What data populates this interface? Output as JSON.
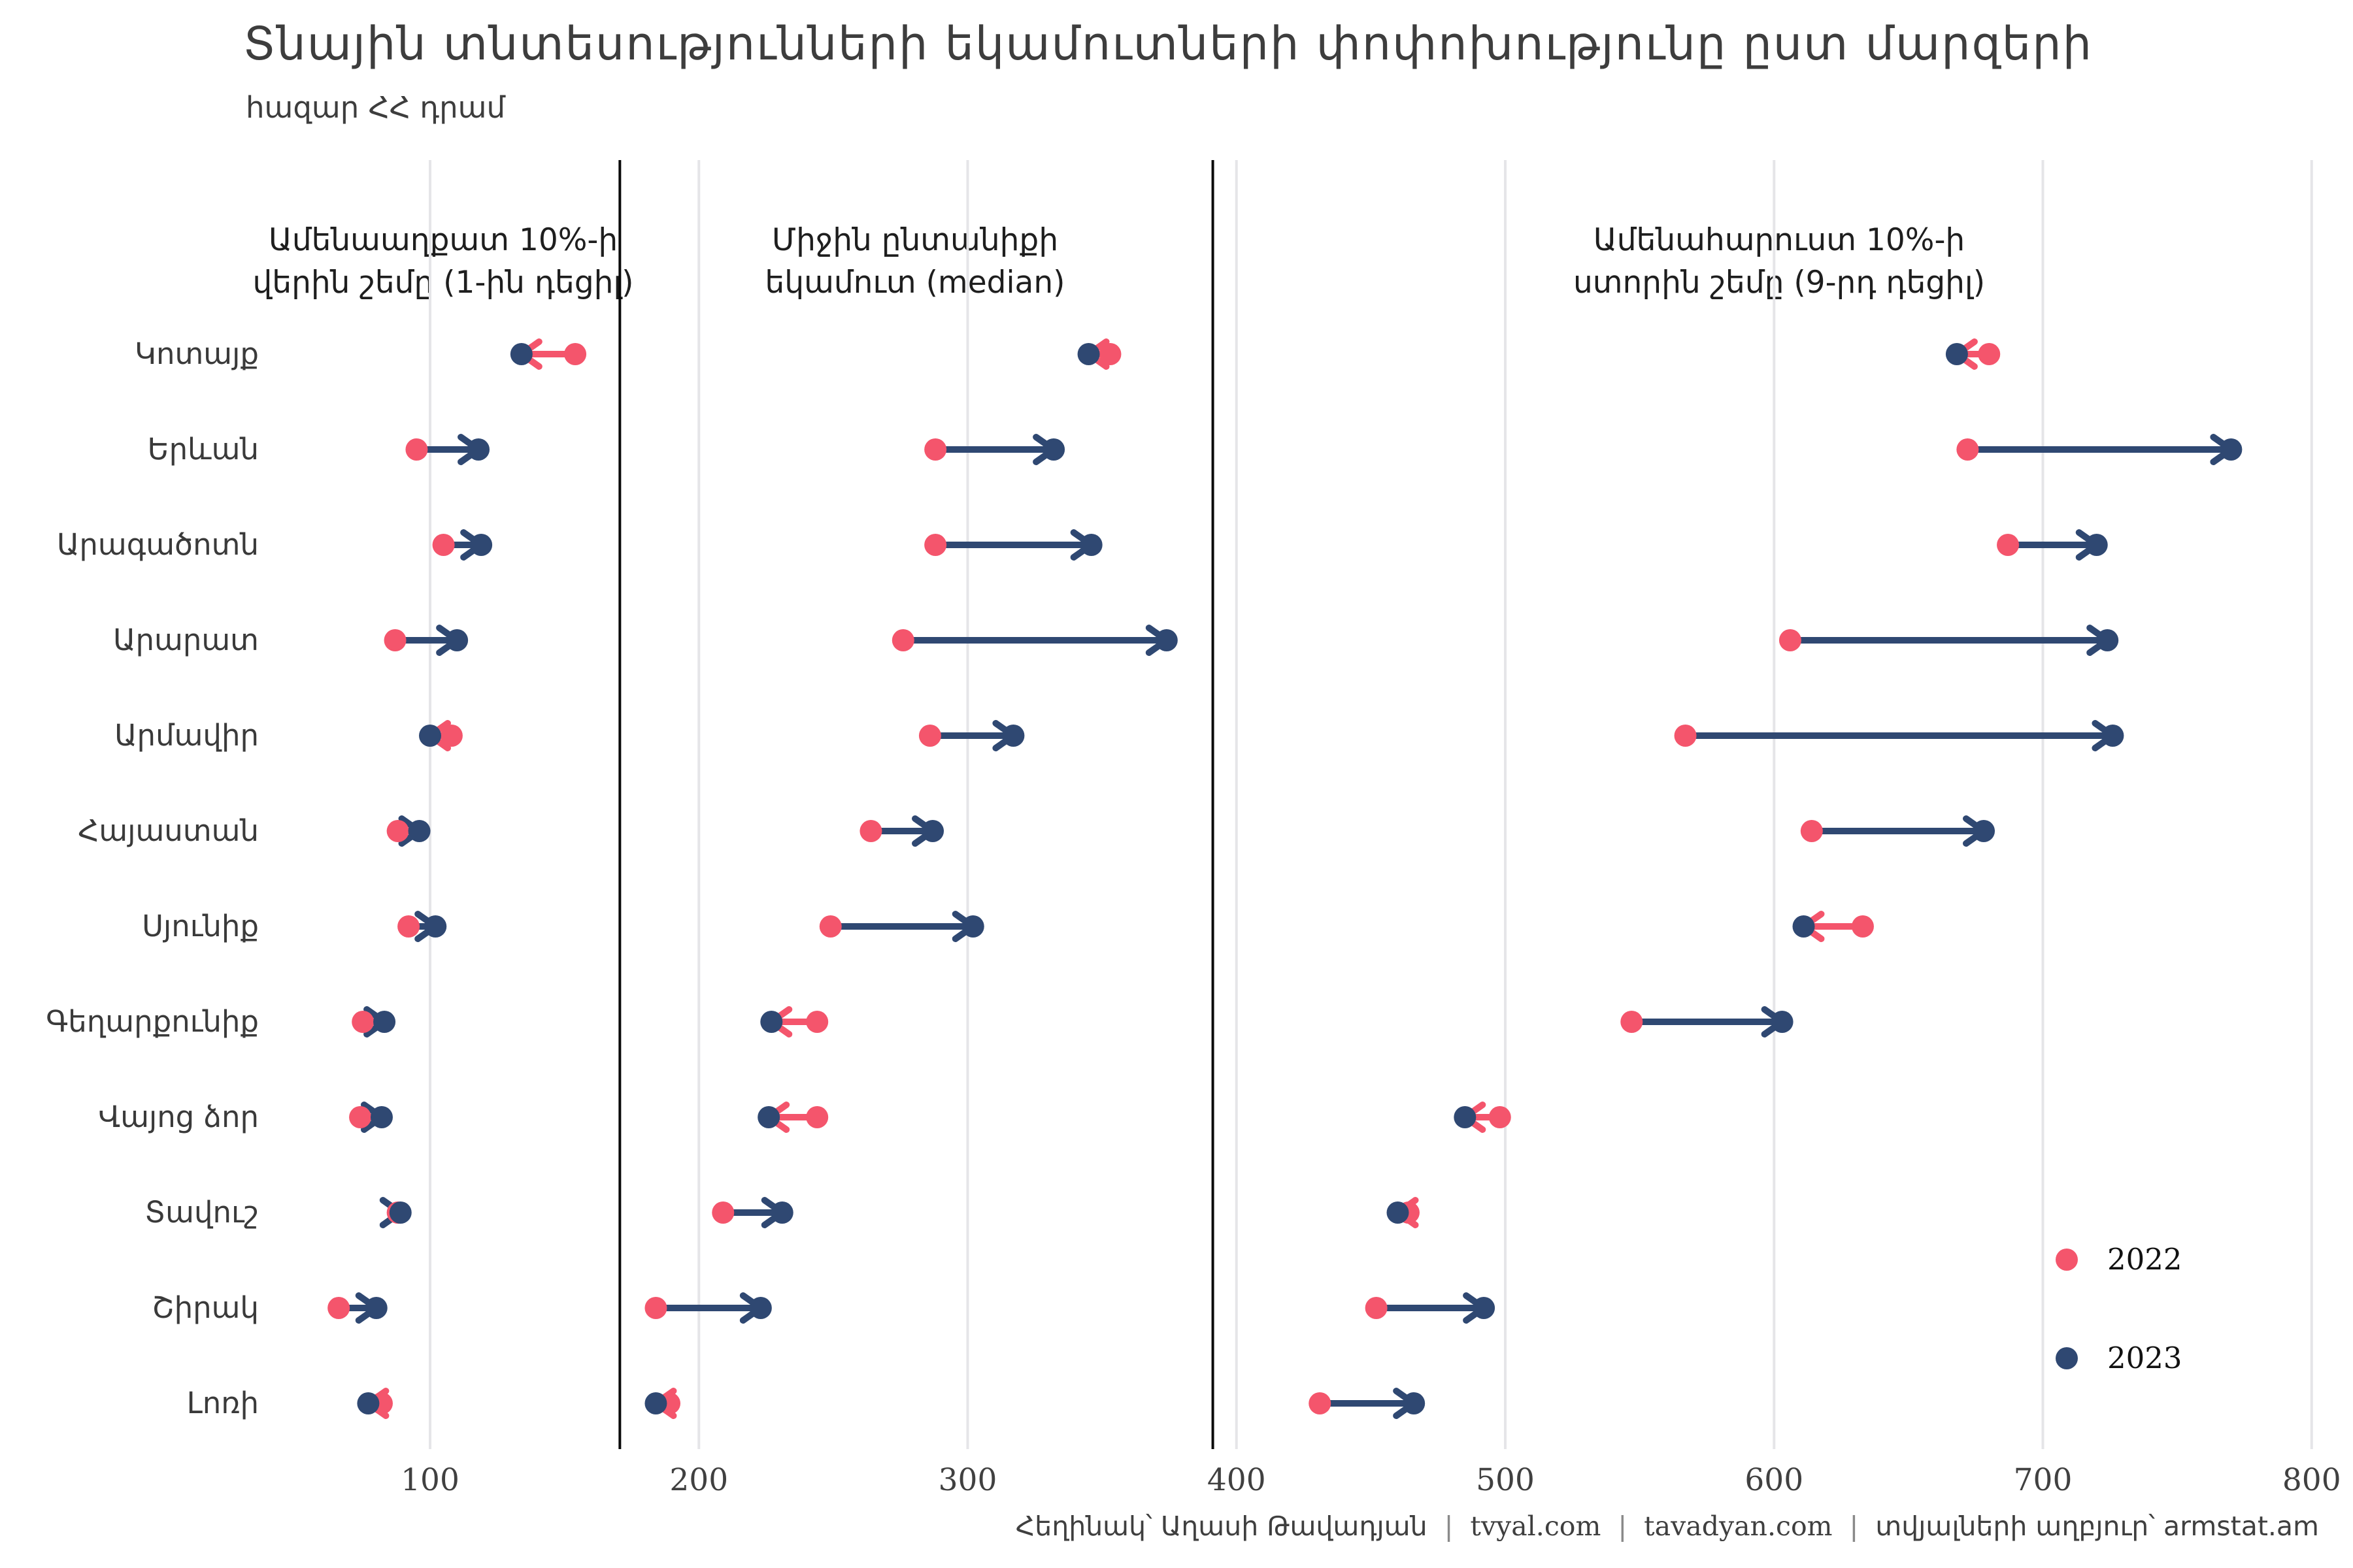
{
  "title": "Տնային տնտեսությունների եկամուտների փոփոխությունը ըստ մարզերի",
  "subtitle": "հազար ՀՀ դրամ",
  "legend": {
    "items": [
      {
        "label": "2022",
        "color": "#F4556C"
      },
      {
        "label": "2023",
        "color": "#2F4872"
      }
    ]
  },
  "footer": {
    "separator": "|",
    "parts": [
      {
        "text": "Հեղինակ՝ Աղասի Թավադյան",
        "script": "armenian"
      },
      {
        "text": "tvyal.com",
        "script": "latin"
      },
      {
        "text": "tavadyan.com",
        "script": "latin"
      },
      {
        "text": "տվյալների աղբյուր՝ armstat.am",
        "script": "armenian"
      }
    ]
  },
  "chart_data": {
    "type": "dumbbell-arrow",
    "title": "Տնային տնտեսությունների եկամուտների փոփոխությունը ըստ մարզերի",
    "subtitle_unit": "հազար ՀՀ դրամ",
    "legend_position": "right-lower",
    "grid": true,
    "x_axis": {
      "ticks": [
        100,
        200,
        300,
        400,
        500,
        600,
        700,
        800
      ],
      "range": [
        60,
        805
      ]
    },
    "panel_boundaries": [
      170.6,
      391.2
    ],
    "series_years": [
      "2022",
      "2023"
    ],
    "colors": {
      "2022": "#F4556C",
      "2023": "#2F4872",
      "increase": "#2F4872",
      "decrease": "#F4556C",
      "grid": "#E5E5E8",
      "separator": "#0a0a0a"
    },
    "regions": [
      "Կոտայք",
      "Երևան",
      "Արագածոտն",
      "Արարատ",
      "Արմավիր",
      "Հայաստան",
      "Սյունիք",
      "Գեղարքունիք",
      "Վայոց ձոր",
      "Տավուշ",
      "Շիրակ",
      "Լոռի"
    ],
    "panels": [
      {
        "title_lines": [
          "Ամենաաղքատ 10%-ի",
          "վերին շեմը (1-ին դեցիլ)"
        ],
        "values_2022": [
          154,
          95,
          105,
          87,
          108,
          88,
          92,
          75,
          74,
          88,
          66,
          82
        ],
        "values_2023": [
          134,
          118,
          119,
          110,
          100,
          96,
          102,
          83,
          82,
          89,
          80,
          77
        ]
      },
      {
        "title_lines": [
          "Միջին ընտանիքի",
          "եկամուտ (median)"
        ],
        "values_2022": [
          353,
          288,
          288,
          276,
          286,
          264,
          249,
          244,
          244,
          209,
          184,
          189
        ],
        "values_2023": [
          345,
          332,
          346,
          374,
          317,
          287,
          302,
          227,
          226,
          231,
          223,
          184
        ]
      },
      {
        "title_lines": [
          "Ամենահարուստ 10%-ի",
          "ստորին շեմը (9-րդ դեցիլ)"
        ],
        "values_2022": [
          680,
          672,
          687,
          606,
          567,
          614,
          633,
          547,
          498,
          464,
          452,
          431
        ],
        "values_2023": [
          668,
          770,
          720,
          724,
          726,
          678,
          611,
          603,
          485,
          460,
          492,
          466
        ]
      }
    ]
  }
}
